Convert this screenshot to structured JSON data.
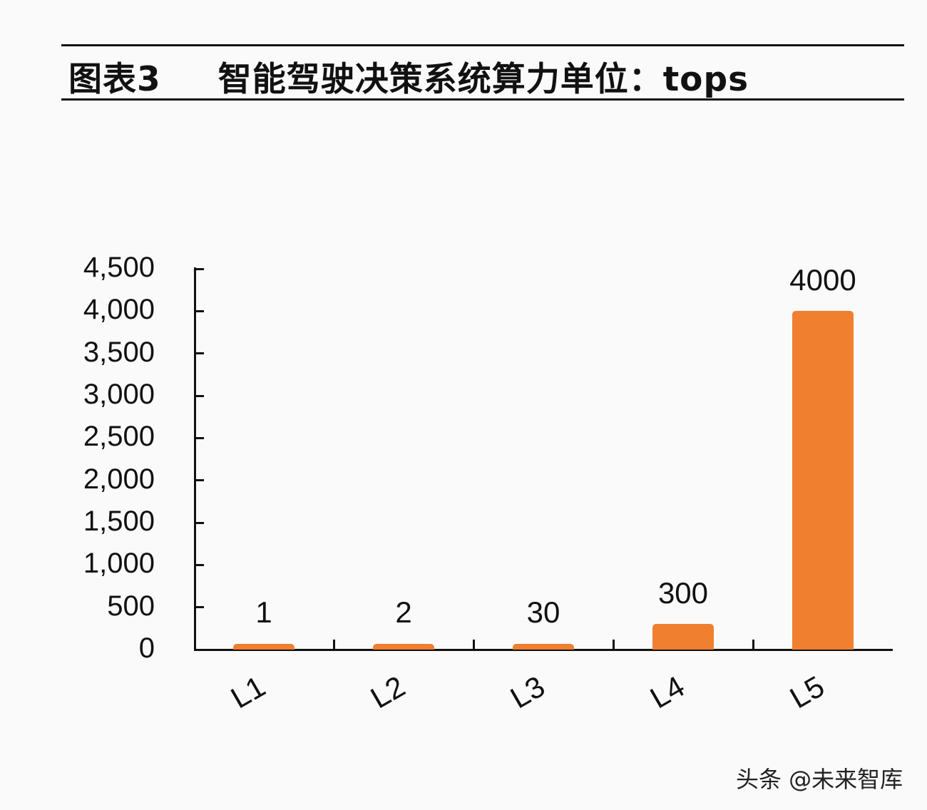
{
  "header": {
    "figure_number": "图表3",
    "title": "智能驾驶决策系统算力单位：tops"
  },
  "chart_data": {
    "type": "bar",
    "title": "智能驾驶决策系统算力单位：tops",
    "categories": [
      "L1",
      "L2",
      "L3",
      "L4",
      "L5"
    ],
    "values": [
      1,
      2,
      30,
      300,
      4000
    ],
    "data_labels": [
      "1",
      "2",
      "30",
      "300",
      "4000"
    ],
    "xlabel": "",
    "ylabel": "",
    "ylim": [
      0,
      4500
    ],
    "yticks": [
      "0",
      "500",
      "1,000",
      "1,500",
      "2,000",
      "2,500",
      "3,000",
      "3,500",
      "4,000",
      "4,500"
    ],
    "grid": false,
    "legend": null,
    "bar_color": "#f07f30"
  },
  "watermark": "头条 @未来智库"
}
